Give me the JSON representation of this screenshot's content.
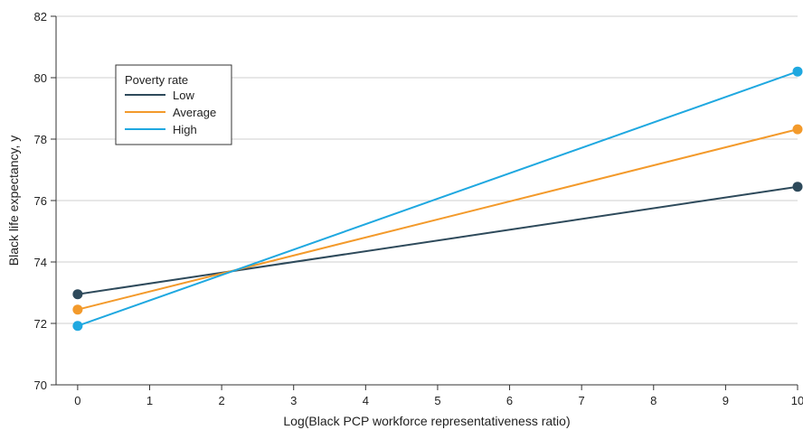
{
  "chart_data": {
    "type": "line",
    "xlabel": "Log(Black PCP workforce representativeness ratio)",
    "ylabel": "Black life expectancy, y",
    "xlim": [
      -0.3,
      10
    ],
    "ylim": [
      70,
      82
    ],
    "xticks": [
      0,
      1,
      2,
      3,
      4,
      5,
      6,
      7,
      8,
      9,
      10
    ],
    "yticks": [
      70,
      72,
      74,
      76,
      78,
      80,
      82
    ],
    "grid": "horizontal",
    "legend": {
      "title": "Poverty rate",
      "placement": "top-left"
    },
    "series": [
      {
        "name": "Low",
        "color": "#2e4a5b",
        "x": [
          0,
          10
        ],
        "y": [
          72.95,
          76.45
        ]
      },
      {
        "name": "Average",
        "color": "#f39a2b",
        "x": [
          0,
          10
        ],
        "y": [
          72.45,
          78.32
        ]
      },
      {
        "name": "High",
        "color": "#1fa8e0",
        "x": [
          0,
          10
        ],
        "y": [
          71.92,
          80.2
        ]
      }
    ]
  }
}
